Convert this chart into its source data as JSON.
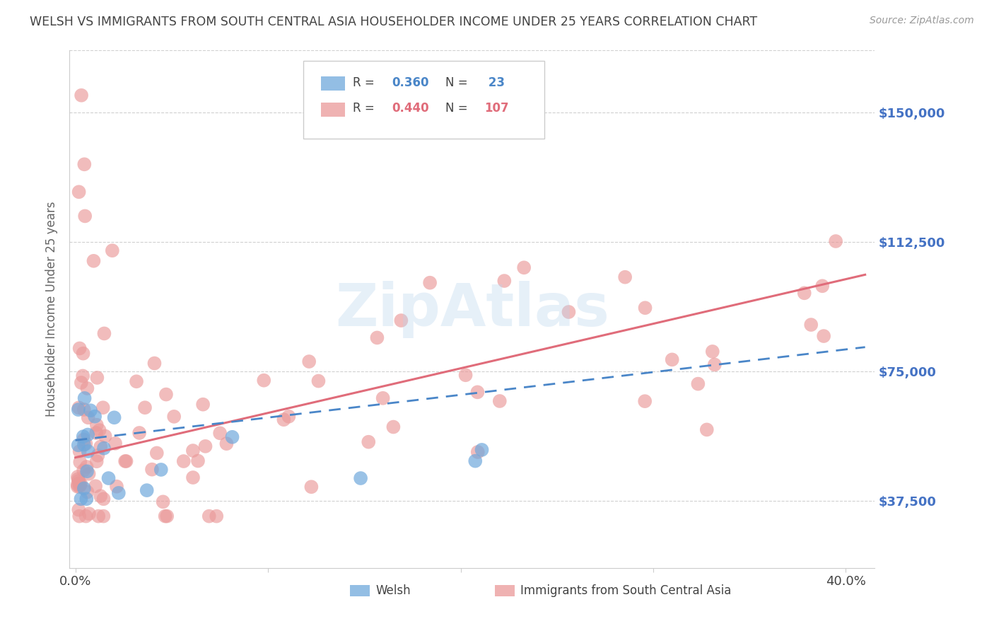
{
  "title": "WELSH VS IMMIGRANTS FROM SOUTH CENTRAL ASIA HOUSEHOLDER INCOME UNDER 25 YEARS CORRELATION CHART",
  "source": "Source: ZipAtlas.com",
  "ylabel": "Householder Income Under 25 years",
  "ytick_labels": [
    "$37,500",
    "$75,000",
    "$112,500",
    "$150,000"
  ],
  "ytick_values": [
    37500,
    75000,
    112500,
    150000
  ],
  "ymin": 18000,
  "ymax": 168000,
  "xmin": -0.003,
  "xmax": 0.415,
  "welsh_R": 0.36,
  "welsh_N": 23,
  "immigrants_R": 0.44,
  "immigrants_N": 107,
  "welsh_color": "#6fa8dc",
  "immigrants_color": "#ea9999",
  "welsh_line_color": "#4a86c8",
  "immigrants_line_color": "#e06c7a",
  "background_color": "#ffffff",
  "grid_color": "#d0d0d0",
  "title_color": "#444444",
  "axis_label_color": "#666666",
  "ytick_color": "#4472c4",
  "xtick_color": "#444444",
  "watermark_color": "#b8d4ed",
  "watermark_alpha": 0.35,
  "legend_box_color": "#ffffff",
  "legend_box_edge": "#cccccc"
}
